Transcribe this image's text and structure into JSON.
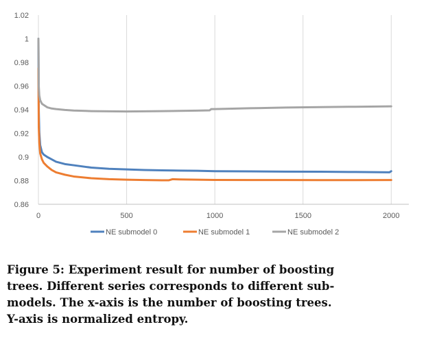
{
  "chart_data": {
    "type": "line",
    "title": "",
    "xlabel": "",
    "ylabel": "",
    "xlim": [
      0,
      2100
    ],
    "ylim": [
      0.86,
      1.02
    ],
    "x_ticks": [
      0,
      500,
      1000,
      1500,
      2000
    ],
    "x_tick_labels": [
      "0",
      "500",
      "1000",
      "1500",
      "2000"
    ],
    "y_ticks": [
      0.86,
      0.88,
      0.9,
      0.92,
      0.94,
      0.96,
      0.98,
      1,
      1.02
    ],
    "y_tick_labels": [
      "0.86",
      "0.88",
      "0.9",
      "0.92",
      "0.94",
      "0.96",
      "0.98",
      "1",
      "1.02"
    ],
    "grid": "vertical",
    "legend_position": "bottom",
    "series": [
      {
        "name": "NE submodel 0",
        "color": "#4f81bd",
        "x": [
          0,
          2,
          5,
          10,
          20,
          30,
          50,
          75,
          100,
          150,
          200,
          300,
          400,
          500,
          600,
          700,
          800,
          900,
          1000,
          1200,
          1400,
          1600,
          1800,
          1990,
          2000
        ],
        "y": [
          1.0,
          0.94,
          0.921,
          0.91,
          0.904,
          0.902,
          0.9,
          0.898,
          0.896,
          0.894,
          0.893,
          0.891,
          0.89,
          0.8895,
          0.889,
          0.8887,
          0.8885,
          0.8883,
          0.888,
          0.8878,
          0.8876,
          0.8875,
          0.8873,
          0.887,
          0.888
        ]
      },
      {
        "name": "NE submodel 1",
        "color": "#ed7d31",
        "x": [
          0,
          2,
          5,
          10,
          20,
          30,
          50,
          75,
          100,
          150,
          200,
          300,
          400,
          500,
          600,
          700,
          740,
          760,
          800,
          900,
          1000,
          1200,
          1400,
          1600,
          1800,
          2000
        ],
        "y": [
          0.975,
          0.925,
          0.912,
          0.903,
          0.898,
          0.895,
          0.892,
          0.889,
          0.887,
          0.885,
          0.8835,
          0.882,
          0.8812,
          0.8808,
          0.8805,
          0.8803,
          0.8803,
          0.8812,
          0.881,
          0.8808,
          0.8806,
          0.8805,
          0.8805,
          0.8804,
          0.8804,
          0.8805
        ]
      },
      {
        "name": "NE submodel 2",
        "color": "#a5a5a5",
        "x": [
          0,
          2,
          5,
          10,
          20,
          30,
          50,
          75,
          100,
          150,
          200,
          300,
          400,
          500,
          600,
          700,
          800,
          900,
          970,
          980,
          1000,
          1200,
          1400,
          1600,
          1800,
          2000
        ],
        "y": [
          1.0,
          0.96,
          0.952,
          0.948,
          0.945,
          0.944,
          0.942,
          0.941,
          0.9405,
          0.9398,
          0.9393,
          0.9388,
          0.9386,
          0.9385,
          0.9386,
          0.9388,
          0.939,
          0.9392,
          0.9394,
          0.9405,
          0.9405,
          0.9412,
          0.9418,
          0.9422,
          0.9425,
          0.9428
        ]
      }
    ]
  },
  "caption": {
    "lines": [
      "Figure 5: Experiment result for number of boosting",
      "trees. Different series corresponds to different sub-",
      "models. The x-axis is the number of boosting trees.",
      "Y-axis is normalized entropy."
    ]
  }
}
